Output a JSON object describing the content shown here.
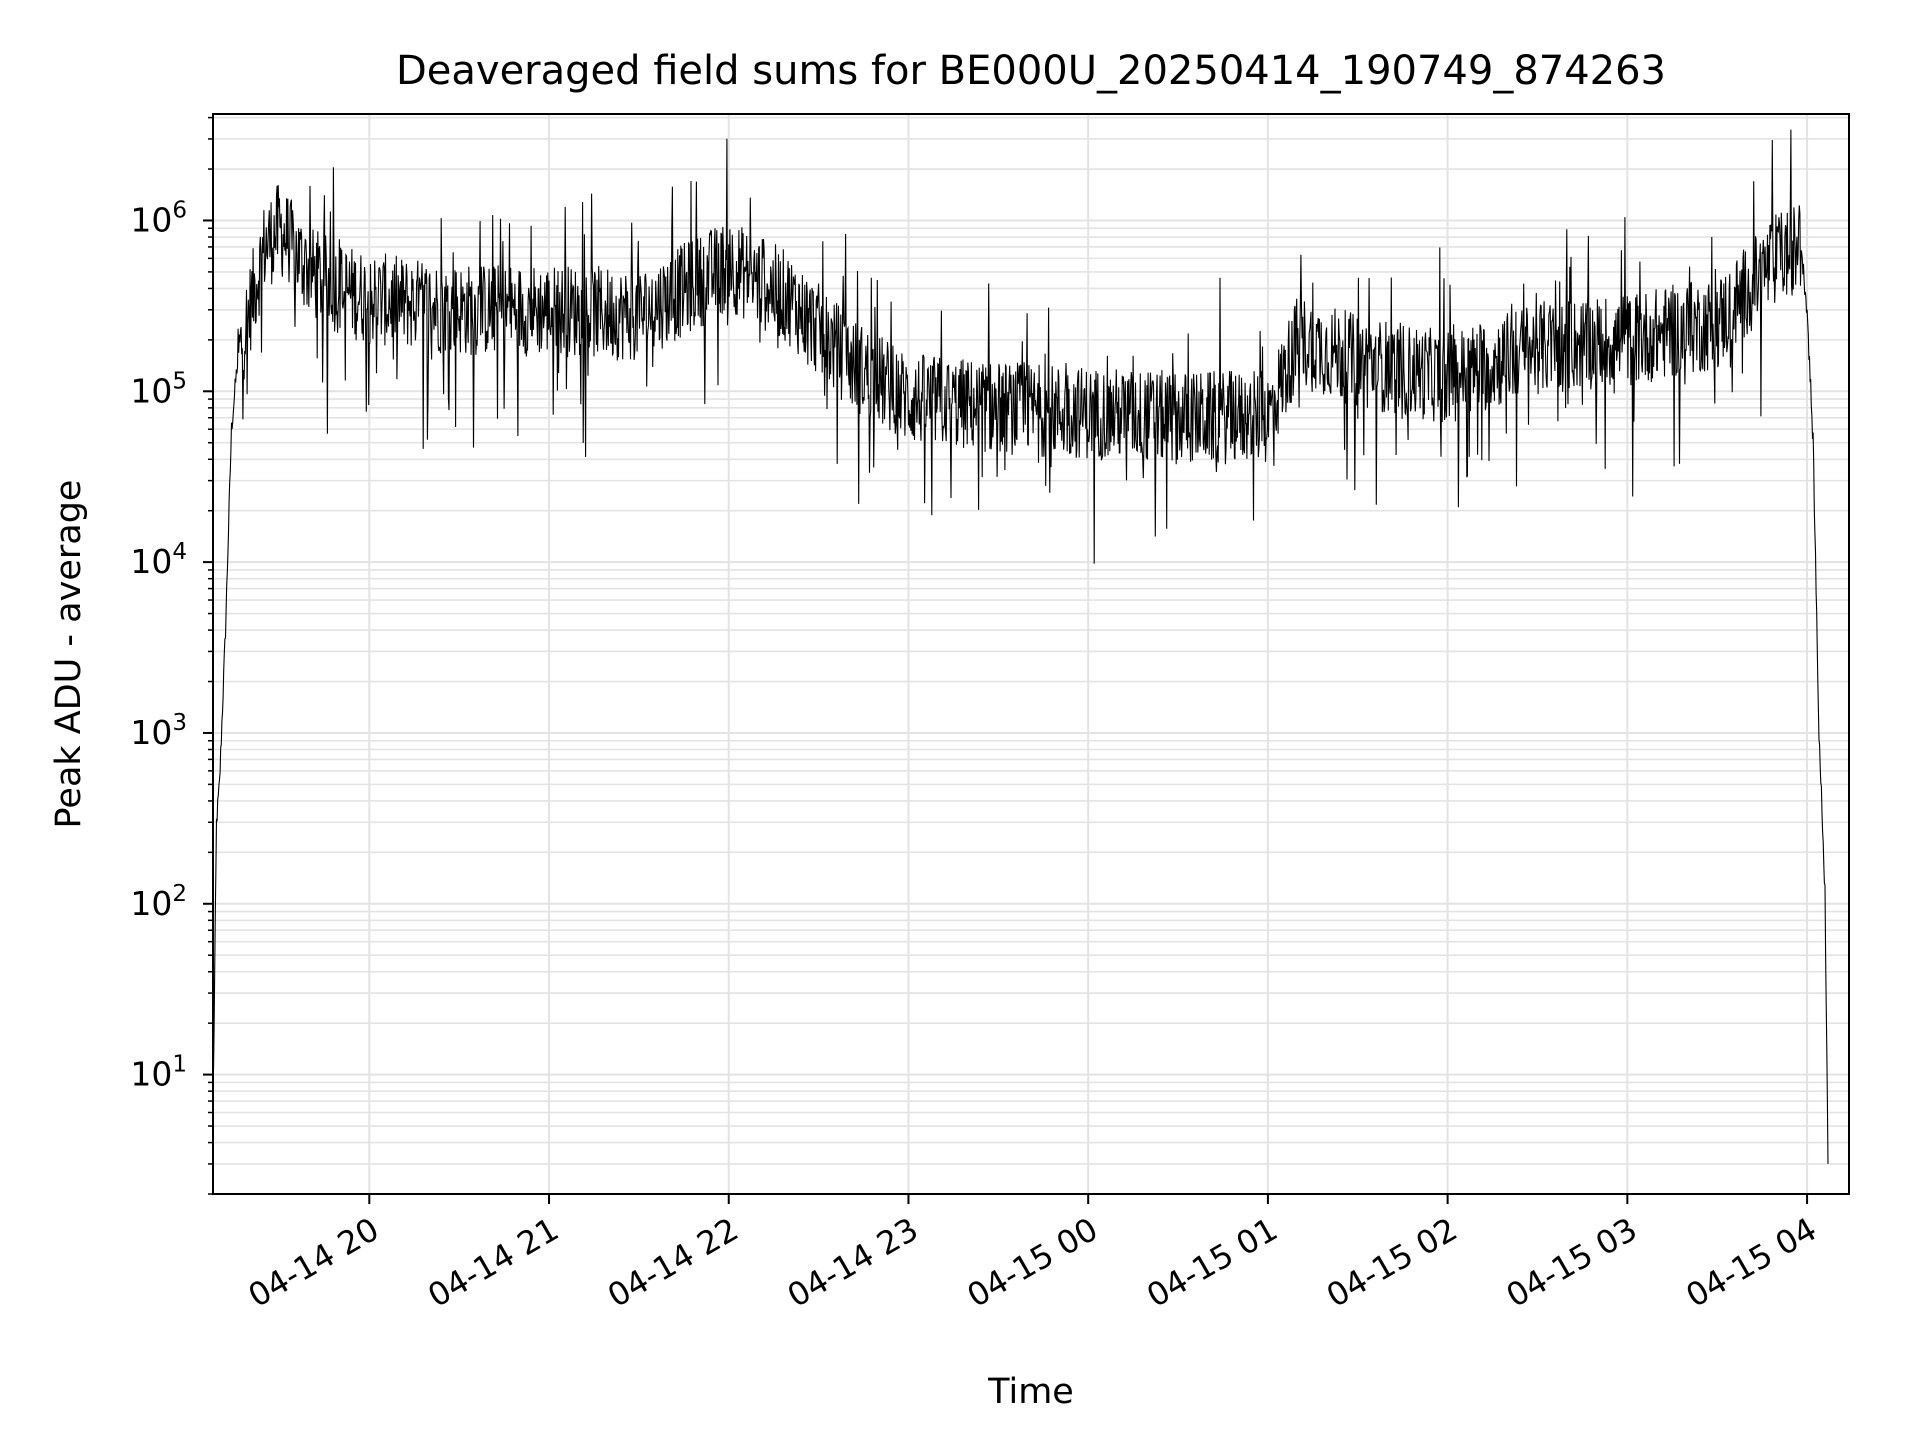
{
  "chart_data": {
    "type": "line",
    "title": "Deaveraged field sums for BE000U_20250414_190749_874263",
    "xlabel": "Time",
    "ylabel": "Peak ADU - average",
    "xscale": "time",
    "yscale": "log",
    "xlim": [
      "2025-04-14 19:07:49",
      "2025-04-15 04:14:00"
    ],
    "ylim": [
      2,
      4200000
    ],
    "grid": "on (major and minor)",
    "legend": "none",
    "line_color": "#000000",
    "x_ticks": [
      "04-14 20",
      "04-14 21",
      "04-14 22",
      "04-14 23",
      "04-15 00",
      "04-15 01",
      "04-15 02",
      "04-15 03",
      "04-15 04"
    ],
    "y_ticks": [
      {
        "base": "10",
        "exp": "1",
        "value": 10
      },
      {
        "base": "10",
        "exp": "2",
        "value": 100
      },
      {
        "base": "10",
        "exp": "3",
        "value": 1000
      },
      {
        "base": "10",
        "exp": "4",
        "value": 10000
      },
      {
        "base": "10",
        "exp": "5",
        "value": 100000
      },
      {
        "base": "10",
        "exp": "6",
        "value": 1000000
      }
    ],
    "series": [
      {
        "x": [
          "2025-04-14 19:08",
          "2025-04-14 19:09",
          "2025-04-14 19:10",
          "2025-04-14 19:12",
          "2025-04-14 19:14",
          "2025-04-14 19:16",
          "2025-04-14 19:20",
          "2025-04-14 19:25",
          "2025-04-14 19:30",
          "2025-04-14 19:40",
          "2025-04-14 19:50",
          "2025-04-14 20:00",
          "2025-04-14 20:30",
          "2025-04-14 21:00",
          "2025-04-14 21:30",
          "2025-04-14 22:00",
          "2025-04-14 22:20",
          "2025-04-14 22:40",
          "2025-04-14 23:00",
          "2025-04-14 23:30",
          "2025-04-15 00:00",
          "2025-04-15 00:30",
          "2025-04-15 01:00",
          "2025-04-15 01:10",
          "2025-04-15 01:30",
          "2025-04-15 02:00",
          "2025-04-15 02:30",
          "2025-04-15 03:00",
          "2025-04-15 03:30",
          "2025-04-15 03:50",
          "2025-04-15 03:58",
          "2025-04-15 04:00",
          "2025-04-15 04:02",
          "2025-04-15 04:04",
          "2025-04-15 04:06",
          "2025-04-15 04:07"
        ],
        "y": [
          10,
          300,
          500,
          4000,
          60000,
          150000,
          300000,
          700000,
          900000,
          500000,
          400000,
          350000,
          300000,
          300000,
          280000,
          550000,
          350000,
          150000,
          90000,
          80000,
          75000,
          70000,
          70000,
          200000,
          150000,
          120000,
          180000,
          200000,
          250000,
          600000,
          700000,
          300000,
          50000,
          1000,
          120,
          3
        ]
      }
    ]
  }
}
